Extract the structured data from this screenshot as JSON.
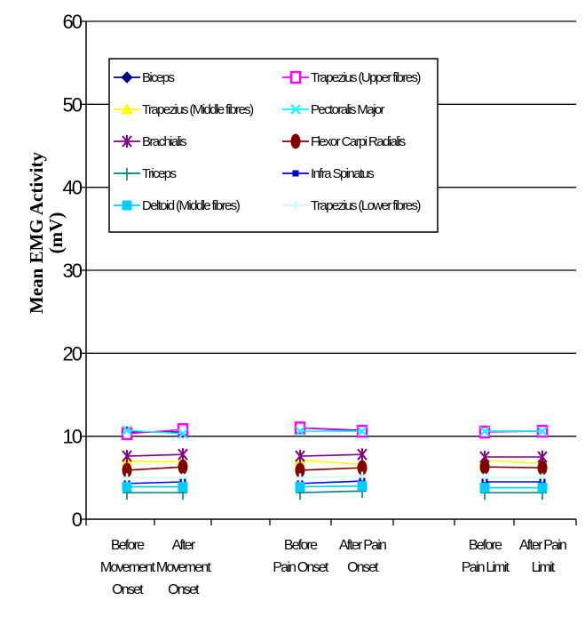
{
  "chart_data": {
    "type": "line",
    "title": "",
    "ylabel_lines": [
      "Mean EMG Activity",
      "(mV)"
    ],
    "ylim": [
      0,
      60
    ],
    "yticks": [
      "0",
      "10",
      "20",
      "30",
      "40",
      "50",
      "60"
    ],
    "grid": true,
    "legend_position": "top-left-inside",
    "categories": [
      [
        "Before",
        "Movement",
        "Onset"
      ],
      [
        "After",
        "Movement",
        "Onset"
      ],
      [
        "Before",
        "Pain Onset"
      ],
      [
        "After Pain",
        "Onset"
      ],
      [
        "Before",
        "Pain Limit"
      ],
      [
        "After Pain",
        "Limit"
      ]
    ],
    "series": [
      {
        "name": "Biceps",
        "color": "#000080",
        "marker": "diamond",
        "values": [
          10.5,
          10.5,
          11.0,
          10.7,
          10.6,
          10.6
        ]
      },
      {
        "name": "Trapezius (Upper fibres)",
        "color": "#ff00ff",
        "marker": "square-open",
        "values": [
          10.3,
          10.8,
          11.0,
          10.6,
          10.5,
          10.6
        ]
      },
      {
        "name": "Trapezius (Middle fibres)",
        "color": "#ffff00",
        "marker": "triangle",
        "values": [
          7.0,
          6.9,
          7.1,
          6.6,
          7.1,
          6.7
        ]
      },
      {
        "name": "Pectoralis Major",
        "color": "#00ffff",
        "marker": "x",
        "values": [
          10.7,
          10.3,
          10.6,
          10.6,
          10.6,
          10.6
        ]
      },
      {
        "name": "Brachialis",
        "color": "#800080",
        "marker": "star",
        "values": [
          7.6,
          7.8,
          7.6,
          7.8,
          7.5,
          7.5
        ]
      },
      {
        "name": "Flexor Carpi Radialis",
        "color": "#800000",
        "marker": "circle",
        "values": [
          5.9,
          6.3,
          5.9,
          6.2,
          6.3,
          6.2
        ]
      },
      {
        "name": "Triceps",
        "color": "#008080",
        "marker": "plus",
        "values": [
          3.2,
          3.2,
          3.2,
          3.4,
          3.2,
          3.2
        ]
      },
      {
        "name": "Infra Spinatus",
        "color": "#0000ff",
        "marker": "square-small",
        "values": [
          4.3,
          4.5,
          4.3,
          4.6,
          4.5,
          4.5
        ]
      },
      {
        "name": "Deltoid (Middle fibres)",
        "color": "#00ccff",
        "marker": "square",
        "values": [
          3.9,
          3.9,
          3.9,
          4.0,
          3.8,
          3.8
        ]
      },
      {
        "name": "Trapezius (Lower fibres)",
        "color": "#ccffff",
        "marker": "plus-light",
        "values": [
          5.0,
          5.0,
          5.0,
          5.2,
          5.0,
          5.0
        ]
      }
    ]
  }
}
